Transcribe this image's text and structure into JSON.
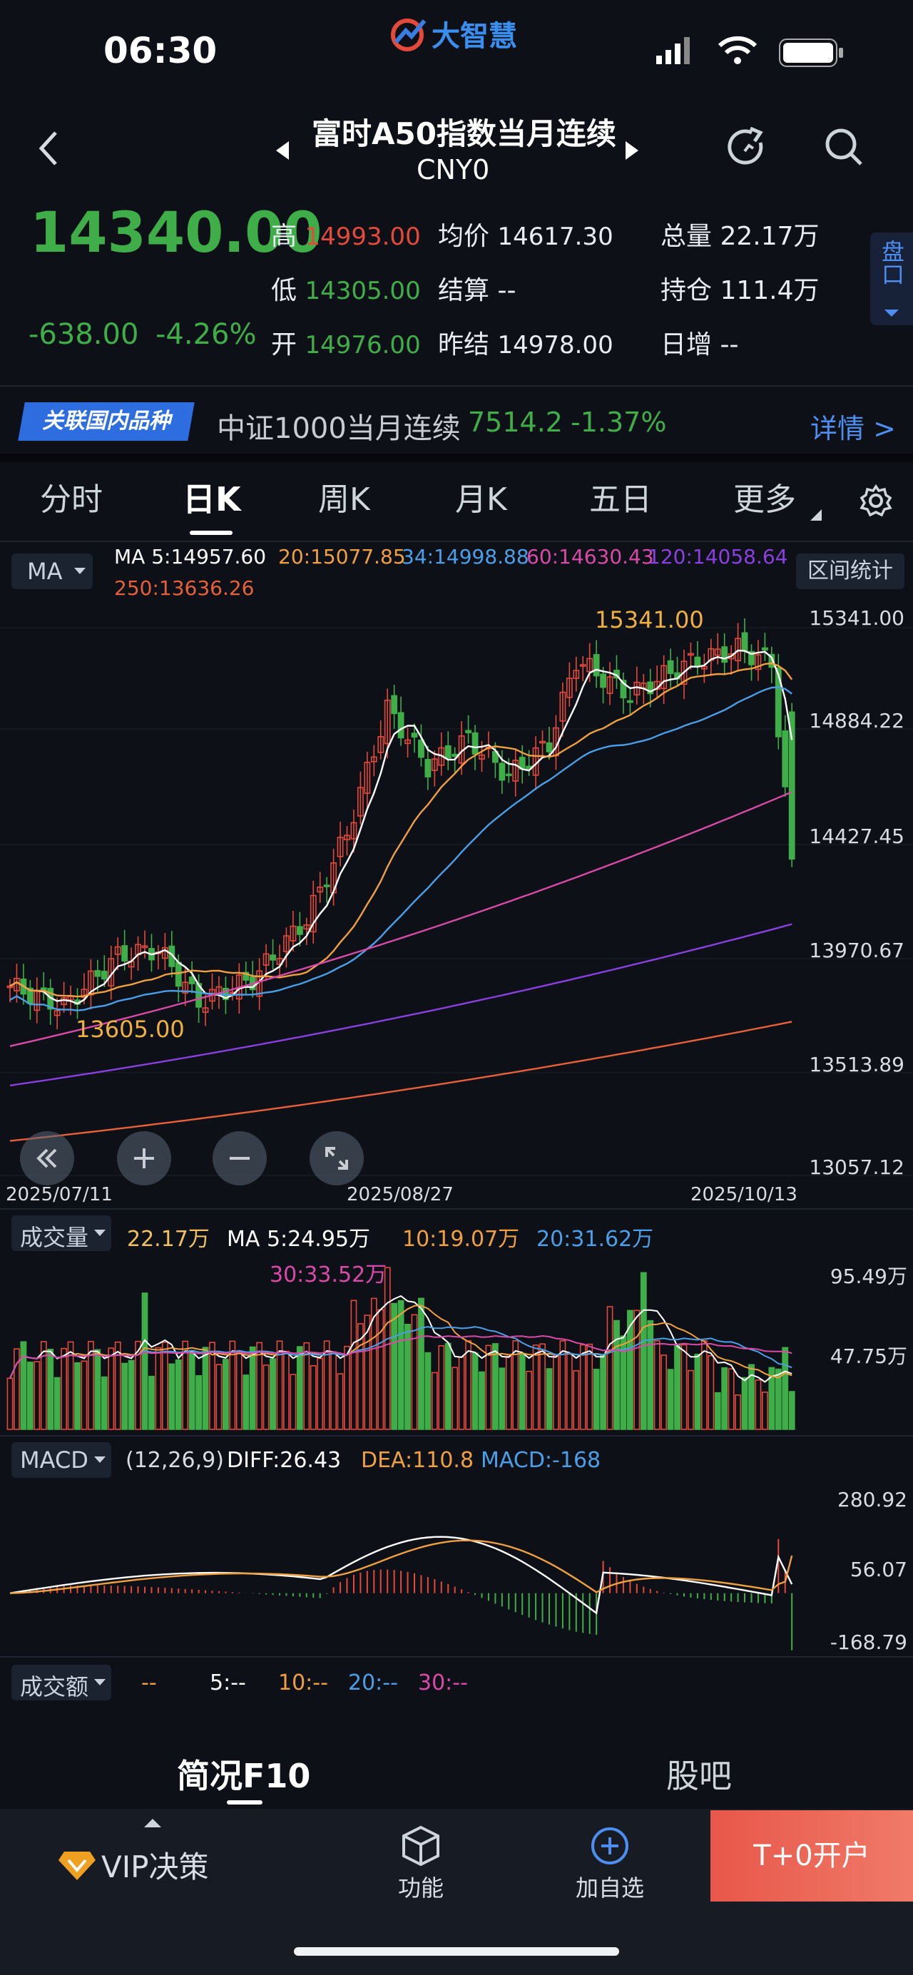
{
  "status_bar": {
    "time": "06:30",
    "brand": "大智慧"
  },
  "header": {
    "title": "富时A50指数当月连续",
    "code": "CNY0"
  },
  "quote": {
    "price": "14340.00",
    "change": "-638.00",
    "change_pct": "-4.26%",
    "high_label": "高",
    "high": "14993.00",
    "low_label": "低",
    "low": "14305.00",
    "open_label": "开",
    "open": "14976.00",
    "avg_label": "均价",
    "avg": "14617.30",
    "settle_label": "结算",
    "settle": "--",
    "prev_settle_label": "昨结",
    "prev_settle": "14978.00",
    "volume_label": "总量",
    "volume": "22.17万",
    "open_interest_label": "持仓",
    "open_interest": "111.4万",
    "daily_incr_label": "日增",
    "daily_incr": "--",
    "side_tab": "盘口"
  },
  "related": {
    "tag": "关联国内品种",
    "name": "中证1000当月连续",
    "price": "7514.2",
    "pct": "-1.37%",
    "detail": "详情 >"
  },
  "period_tabs": [
    "分时",
    "日K",
    "周K",
    "月K",
    "五日",
    "更多"
  ],
  "active_tab": "日K",
  "ma_legend": {
    "selector": "MA",
    "ma5": "MA  5:14957.60",
    "ma20": "20:15077.85",
    "ma34": "34:14998.88",
    "ma60": "60:14630.43",
    "ma120": "120:14058.64",
    "ma250": "250:13636.26",
    "range_stats": "区间统计"
  },
  "price_axis": [
    "15341.00",
    "14884.22",
    "14427.45",
    "13970.67",
    "13513.89",
    "13057.12"
  ],
  "annotations": {
    "high": "15341.00",
    "low": "13605.00"
  },
  "date_axis": [
    "2025/07/11",
    "2025/08/27",
    "2025/10/13"
  ],
  "volume_legend": {
    "selector": "成交量",
    "value": "22.17万",
    "ma5": "MA 5:24.95万",
    "ma10": "10:19.07万",
    "ma20": "20:31.62万",
    "ma30": "30:33.52万"
  },
  "volume_axis": [
    "95.49万",
    "47.75万"
  ],
  "macd_legend": {
    "selector": "MACD",
    "params": "(12,26,9)",
    "diff": "DIFF:26.43",
    "dea": "DEA:110.8",
    "macd": "MACD:-168"
  },
  "macd_axis": [
    "280.92",
    "56.07",
    "-168.79"
  ],
  "amount_legend": {
    "selector": "成交额",
    "v": "--",
    "ma5": "5:--",
    "ma10": "10:--",
    "ma20": "20:--",
    "ma30": "30:--"
  },
  "bottom_tabs": {
    "f10": "简况F10",
    "forum": "股吧"
  },
  "nav": {
    "vip": "VIP决策",
    "func": "功能",
    "add": "加自选",
    "open": "T+0开户"
  },
  "colors": {
    "up": "#e5493a",
    "down": "#3fae49",
    "ma5": "#ffffff",
    "ma20": "#f0a040",
    "ma34": "#4a9fe8",
    "ma60": "#d94aa8",
    "ma120": "#8a3fe0",
    "ma250": "#e8603a",
    "accent": "#4d8ef0"
  }
}
